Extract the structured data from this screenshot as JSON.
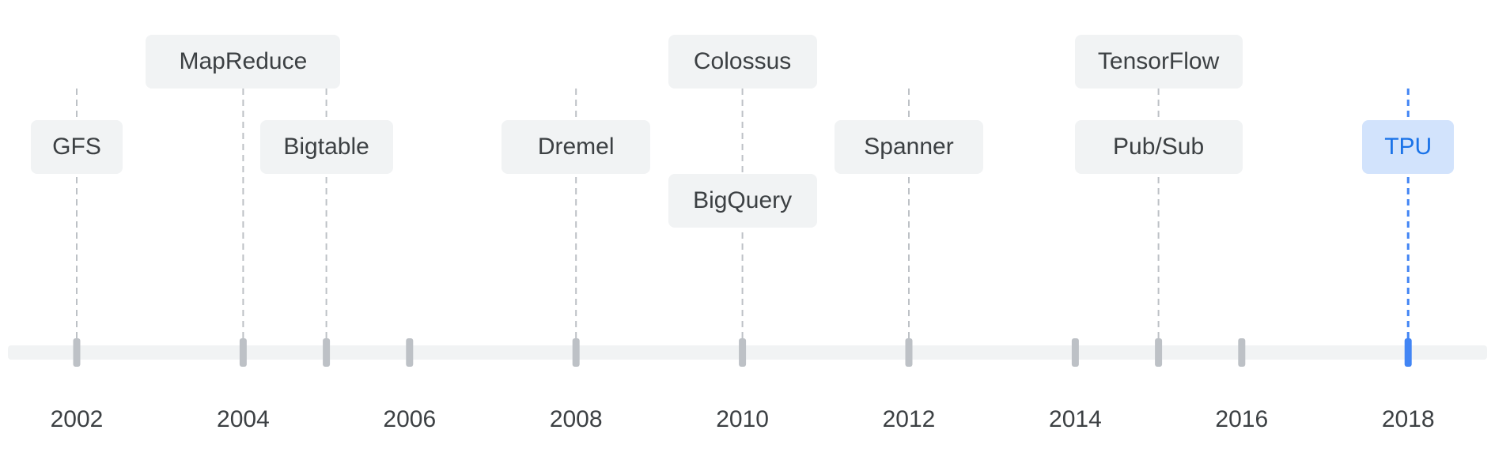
{
  "timeline": {
    "events": [
      {
        "name": "GFS",
        "year": 2002
      },
      {
        "name": "MapReduce",
        "year": 2004
      },
      {
        "name": "Bigtable",
        "year": 2005
      },
      {
        "name": "Dremel",
        "year": 2008
      },
      {
        "name": "Colossus",
        "year": 2010
      },
      {
        "name": "BigQuery",
        "year": 2010
      },
      {
        "name": "Spanner",
        "year": 2012
      },
      {
        "name": "TensorFlow",
        "year": 2015
      },
      {
        "name": "Pub/Sub",
        "year": 2015
      },
      {
        "name": "TPU",
        "year": 2018,
        "highlighted": true
      }
    ],
    "year_labels": [
      "2002",
      "2004",
      "2006",
      "2008",
      "2010",
      "2012",
      "2014",
      "2016",
      "2018"
    ],
    "ticks": [
      2002,
      2004,
      2005,
      2006,
      2008,
      2010,
      2012,
      2014,
      2015,
      2016,
      2018
    ],
    "colors": {
      "track": "#f1f3f4",
      "tick": "#bdc1c6",
      "connector": "#bdc1c6",
      "label_bg": "#f1f3f4",
      "label_text": "#3c4043",
      "highlight": "#4285f4",
      "highlight_bg": "#d2e3fc",
      "highlight_text": "#1a73e8"
    }
  }
}
